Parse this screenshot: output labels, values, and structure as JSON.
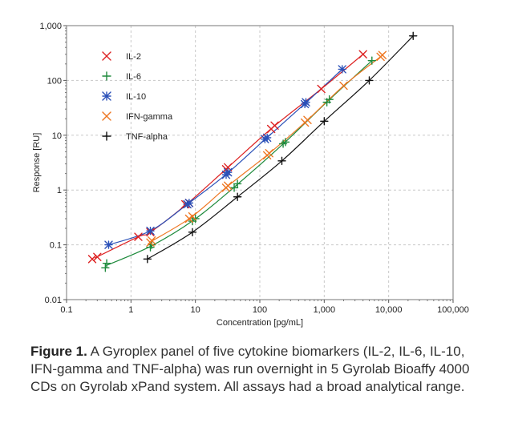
{
  "chart_data": {
    "type": "line",
    "xscale": "log",
    "yscale": "log",
    "xlim": [
      0.1,
      100000
    ],
    "ylim": [
      0.01,
      1000
    ],
    "xlabel": "Concentration [pg/mL]",
    "ylabel": "Response [RU]",
    "x_ticks": [
      "0.1",
      "1",
      "10",
      "100",
      "1,000",
      "10,000",
      "100,000"
    ],
    "y_ticks": [
      "0.01",
      "0.1",
      "1",
      "10",
      "100",
      "1,000"
    ],
    "legend_position": "top-left",
    "series": [
      {
        "name": "IL-2",
        "marker": "x",
        "color": "#dd2222",
        "x": [
          0.25,
          0.3,
          1.3,
          2,
          7,
          8,
          30,
          32,
          150,
          170,
          900,
          4000
        ],
        "y": [
          0.055,
          0.06,
          0.14,
          0.17,
          0.55,
          0.58,
          2.4,
          2.6,
          13,
          15,
          70,
          300
        ]
      },
      {
        "name": "IL-6",
        "marker": "+",
        "color": "#1e8a3c",
        "x": [
          0.4,
          0.42,
          2,
          2.1,
          9,
          10,
          40,
          45,
          230,
          250,
          1100,
          1200,
          5500
        ],
        "y": [
          0.038,
          0.046,
          0.09,
          0.1,
          0.27,
          0.3,
          1.1,
          1.3,
          7,
          7.5,
          40,
          45,
          230
        ]
      },
      {
        "name": "IL-10",
        "marker": "*",
        "color": "#2a50b8",
        "x": [
          0.45,
          2,
          7.5,
          8,
          30,
          32,
          120,
          130,
          500,
          520,
          1900
        ],
        "y": [
          0.1,
          0.18,
          0.55,
          0.58,
          1.9,
          2.1,
          8.5,
          9,
          37,
          40,
          160
        ]
      },
      {
        "name": "IFN-gamma",
        "marker": "x",
        "color": "#ee7722",
        "x": [
          2,
          2.1,
          8,
          9,
          30,
          32,
          130,
          140,
          500,
          550,
          2000,
          7500,
          8000
        ],
        "y": [
          0.11,
          0.12,
          0.3,
          0.33,
          1.1,
          1.2,
          4.3,
          4.7,
          17,
          19,
          80,
          270,
          290
        ]
      },
      {
        "name": "TNF-alpha",
        "marker": "+",
        "color": "#111111",
        "x": [
          1.8,
          9,
          45,
          220,
          1000,
          5000,
          24000
        ],
        "y": [
          0.055,
          0.17,
          0.75,
          3.4,
          18,
          100,
          650
        ]
      }
    ]
  },
  "caption": {
    "label": "Figure 1.",
    "text": " A Gyroplex panel of five cytokine biomarkers (IL-2, IL-6, IL-10, IFN-gamma and TNF-alpha) was run overnight in 5 Gyrolab Bioaffy 4000 CDs on Gyrolab xPand system. All assays had a broad analytical range."
  }
}
